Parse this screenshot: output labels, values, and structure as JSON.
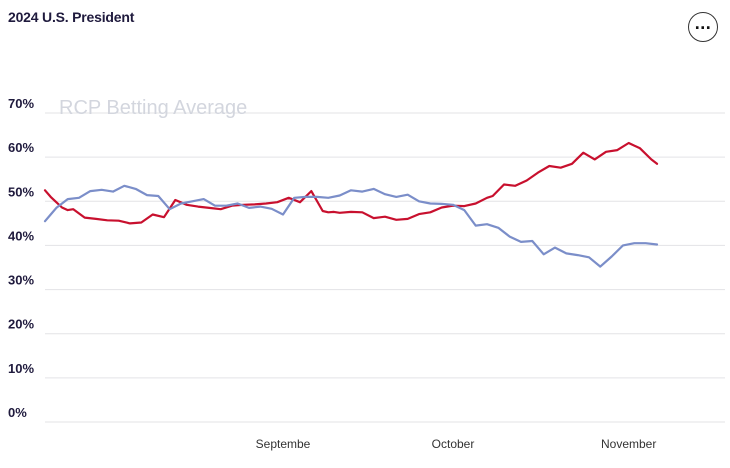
{
  "header": {
    "title": "2024 U.S. President"
  },
  "menu": {
    "icon": "ellipsis-icon",
    "glyph": "..."
  },
  "chart_data": {
    "type": "line",
    "watermark": "RCP Betting Average",
    "ylim": [
      0,
      70
    ],
    "yticks": [
      0,
      10,
      20,
      30,
      40,
      50,
      60,
      70
    ],
    "ytick_labels": [
      "0%",
      "10%",
      "20%",
      "30%",
      "40%",
      "50%",
      "60%",
      "70%"
    ],
    "xticks": [
      {
        "label": "Septembe",
        "x": "2024-09-01"
      },
      {
        "label": "October",
        "x": "2024-10-01"
      },
      {
        "label": "November",
        "x": "2024-11-01"
      }
    ],
    "xlim": [
      "2024-07-21",
      "2024-11-18"
    ],
    "grid": true,
    "series": [
      {
        "color": "#c8102e",
        "x": [
          "2024-07-21",
          "2024-07-22",
          "2024-07-23",
          "2024-07-24",
          "2024-07-25",
          "2024-07-26",
          "2024-07-28",
          "2024-07-30",
          "2024-08-01",
          "2024-08-03",
          "2024-08-05",
          "2024-08-07",
          "2024-08-09",
          "2024-08-11",
          "2024-08-13",
          "2024-08-15",
          "2024-08-17",
          "2024-08-19",
          "2024-08-21",
          "2024-08-23",
          "2024-08-25",
          "2024-08-27",
          "2024-08-29",
          "2024-08-31",
          "2024-09-02",
          "2024-09-04",
          "2024-09-06",
          "2024-09-08",
          "2024-09-09",
          "2024-09-10",
          "2024-09-11",
          "2024-09-13",
          "2024-09-15",
          "2024-09-17",
          "2024-09-19",
          "2024-09-21",
          "2024-09-23",
          "2024-09-25",
          "2024-09-27",
          "2024-09-29",
          "2024-10-01",
          "2024-10-03",
          "2024-10-05",
          "2024-10-07",
          "2024-10-08",
          "2024-10-10",
          "2024-10-12",
          "2024-10-14",
          "2024-10-16",
          "2024-10-18",
          "2024-10-20",
          "2024-10-22",
          "2024-10-24",
          "2024-10-26",
          "2024-10-28",
          "2024-10-30",
          "2024-11-01",
          "2024-11-03",
          "2024-11-05",
          "2024-11-06"
        ],
        "values": [
          52.5,
          51.0,
          49.8,
          48.6,
          48.0,
          48.2,
          46.3,
          46.0,
          45.7,
          45.6,
          45.0,
          45.2,
          47.0,
          46.4,
          50.3,
          49.2,
          48.8,
          48.5,
          48.2,
          49.0,
          49.2,
          49.3,
          49.5,
          49.8,
          50.8,
          49.8,
          52.3,
          47.8,
          47.5,
          47.6,
          47.4,
          47.6,
          47.5,
          46.2,
          46.5,
          45.8,
          46.0,
          47.1,
          47.5,
          48.6,
          49.0,
          48.9,
          49.5,
          50.8,
          51.2,
          53.8,
          53.5,
          54.7,
          56.5,
          58.0,
          57.6,
          58.5,
          61.0,
          59.5,
          61.2,
          61.6,
          63.2,
          62.0,
          59.5,
          58.5
        ]
      },
      {
        "color": "#7b8ec9",
        "x": [
          "2024-07-21",
          "2024-07-22",
          "2024-07-23",
          "2024-07-25",
          "2024-07-27",
          "2024-07-29",
          "2024-07-31",
          "2024-08-02",
          "2024-08-04",
          "2024-08-06",
          "2024-08-08",
          "2024-08-10",
          "2024-08-12",
          "2024-08-14",
          "2024-08-16",
          "2024-08-18",
          "2024-08-20",
          "2024-08-22",
          "2024-08-24",
          "2024-08-26",
          "2024-08-28",
          "2024-08-30",
          "2024-09-01",
          "2024-09-03",
          "2024-09-05",
          "2024-09-07",
          "2024-09-09",
          "2024-09-11",
          "2024-09-13",
          "2024-09-15",
          "2024-09-17",
          "2024-09-19",
          "2024-09-21",
          "2024-09-23",
          "2024-09-25",
          "2024-09-27",
          "2024-09-29",
          "2024-10-01",
          "2024-10-03",
          "2024-10-05",
          "2024-10-07",
          "2024-10-09",
          "2024-10-11",
          "2024-10-13",
          "2024-10-15",
          "2024-10-17",
          "2024-10-19",
          "2024-10-21",
          "2024-10-23",
          "2024-10-25",
          "2024-10-27",
          "2024-10-29",
          "2024-10-31",
          "2024-11-02",
          "2024-11-04",
          "2024-11-06"
        ],
        "values": [
          45.5,
          47.0,
          48.5,
          50.5,
          50.8,
          52.3,
          52.6,
          52.2,
          53.5,
          52.8,
          51.4,
          51.2,
          48.2,
          49.5,
          50.0,
          50.5,
          49.0,
          49.0,
          49.5,
          48.5,
          48.8,
          48.3,
          47.0,
          50.8,
          51.0,
          51.0,
          50.8,
          51.3,
          52.5,
          52.2,
          52.8,
          51.6,
          51.0,
          51.5,
          50.0,
          49.5,
          49.4,
          49.2,
          48.0,
          44.5,
          44.8,
          44.0,
          42.0,
          40.8,
          41.0,
          38.0,
          39.5,
          38.2,
          37.8,
          37.3,
          35.2,
          37.5,
          40.0,
          40.5,
          40.5,
          40.2
        ]
      }
    ]
  }
}
